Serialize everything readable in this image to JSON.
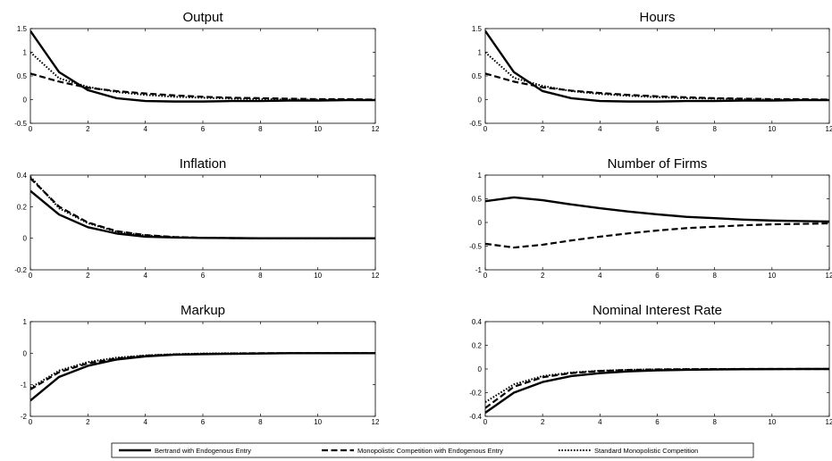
{
  "chart_data": [
    {
      "type": "line",
      "title": "Output",
      "xlim": [
        0,
        12
      ],
      "ylim": [
        -0.5,
        1.5
      ],
      "xticks": [
        "0",
        "2",
        "4",
        "6",
        "8",
        "10",
        "12"
      ],
      "yticks": [
        "-0.5",
        "0",
        "0.5",
        "1",
        "1.5"
      ],
      "x": [
        0,
        1,
        2,
        3,
        4,
        5,
        6,
        7,
        8,
        9,
        10,
        11,
        12
      ],
      "series": [
        {
          "style": "solid",
          "values": [
            1.45,
            0.58,
            0.2,
            0.03,
            -0.03,
            -0.04,
            -0.04,
            -0.03,
            -0.03,
            -0.02,
            -0.02,
            -0.01,
            -0.01
          ]
        },
        {
          "style": "dashed",
          "values": [
            0.55,
            0.38,
            0.25,
            0.18,
            0.13,
            0.09,
            0.06,
            0.04,
            0.03,
            0.02,
            0.01,
            0.01,
            0.0
          ]
        },
        {
          "style": "dotted",
          "values": [
            1.0,
            0.45,
            0.27,
            0.16,
            0.1,
            0.06,
            0.04,
            0.02,
            0.01,
            0.0,
            0.0,
            0.0,
            0.0
          ]
        }
      ]
    },
    {
      "type": "line",
      "title": "Hours",
      "xlim": [
        0,
        12
      ],
      "ylim": [
        -0.5,
        1.5
      ],
      "xticks": [
        "0",
        "2",
        "4",
        "6",
        "8",
        "10",
        "12"
      ],
      "yticks": [
        "-0.5",
        "0",
        "0.5",
        "1",
        "1.5"
      ],
      "x": [
        0,
        1,
        2,
        3,
        4,
        5,
        6,
        7,
        8,
        9,
        10,
        11,
        12
      ],
      "series": [
        {
          "style": "solid",
          "values": [
            1.45,
            0.58,
            0.18,
            0.03,
            -0.03,
            -0.04,
            -0.04,
            -0.03,
            -0.03,
            -0.02,
            -0.02,
            -0.01,
            -0.01
          ]
        },
        {
          "style": "dashed",
          "values": [
            0.55,
            0.38,
            0.26,
            0.19,
            0.14,
            0.1,
            0.07,
            0.05,
            0.03,
            0.02,
            0.01,
            0.01,
            0.0
          ]
        },
        {
          "style": "dotted",
          "values": [
            1.0,
            0.46,
            0.29,
            0.18,
            0.12,
            0.08,
            0.05,
            0.03,
            0.02,
            0.01,
            0.0,
            0.0,
            0.0
          ]
        }
      ]
    },
    {
      "type": "line",
      "title": "Inflation",
      "xlim": [
        0,
        12
      ],
      "ylim": [
        -0.2,
        0.4
      ],
      "xticks": [
        "0",
        "2",
        "4",
        "6",
        "8",
        "10",
        "12"
      ],
      "yticks": [
        "-0.2",
        "0",
        "0.2",
        "0.4"
      ],
      "x": [
        0,
        1,
        2,
        3,
        4,
        5,
        6,
        7,
        8,
        9,
        10,
        11,
        12
      ],
      "series": [
        {
          "style": "solid",
          "values": [
            0.3,
            0.15,
            0.07,
            0.03,
            0.01,
            0.005,
            0.002,
            0.001,
            0.0,
            0.0,
            0.0,
            0.0,
            0.0
          ]
        },
        {
          "style": "dashed",
          "values": [
            0.38,
            0.2,
            0.1,
            0.045,
            0.02,
            0.008,
            0.003,
            0.001,
            0.0,
            0.0,
            0.0,
            0.0,
            0.0
          ]
        },
        {
          "style": "dotted",
          "values": [
            0.39,
            0.19,
            0.095,
            0.042,
            0.018,
            0.007,
            0.003,
            0.001,
            0.0,
            0.0,
            0.0,
            0.0,
            0.0
          ]
        }
      ]
    },
    {
      "type": "line",
      "title": "Number of Firms",
      "xlim": [
        0,
        12
      ],
      "ylim": [
        -1,
        1
      ],
      "xticks": [
        "0",
        "2",
        "4",
        "6",
        "8",
        "10",
        "12"
      ],
      "yticks": [
        "-1",
        "-0.5",
        "0",
        "0.5",
        "1"
      ],
      "x": [
        0,
        1,
        2,
        3,
        4,
        5,
        6,
        7,
        8,
        9,
        10,
        11,
        12
      ],
      "series": [
        {
          "style": "solid",
          "values": [
            0.45,
            0.53,
            0.47,
            0.38,
            0.3,
            0.23,
            0.17,
            0.12,
            0.09,
            0.06,
            0.04,
            0.03,
            0.02
          ]
        },
        {
          "style": "dashed",
          "values": [
            -0.45,
            -0.53,
            -0.47,
            -0.38,
            -0.3,
            -0.23,
            -0.17,
            -0.12,
            -0.09,
            -0.06,
            -0.04,
            -0.03,
            -0.02
          ]
        }
      ]
    },
    {
      "type": "line",
      "title": "Markup",
      "xlim": [
        0,
        12
      ],
      "ylim": [
        -2,
        1
      ],
      "xticks": [
        "0",
        "2",
        "4",
        "6",
        "8",
        "10",
        "12"
      ],
      "yticks": [
        "-2",
        "-1",
        "0",
        "1"
      ],
      "x": [
        0,
        1,
        2,
        3,
        4,
        5,
        6,
        7,
        8,
        9,
        10,
        11,
        12
      ],
      "series": [
        {
          "style": "solid",
          "values": [
            -1.5,
            -0.75,
            -0.4,
            -0.2,
            -0.1,
            -0.05,
            -0.03,
            -0.02,
            -0.01,
            0.0,
            0.0,
            0.0,
            0.0
          ]
        },
        {
          "style": "dashed",
          "values": [
            -1.15,
            -0.6,
            -0.32,
            -0.17,
            -0.08,
            -0.04,
            -0.02,
            -0.01,
            0.0,
            0.0,
            0.0,
            0.0,
            0.0
          ]
        },
        {
          "style": "dotted",
          "values": [
            -1.1,
            -0.55,
            -0.28,
            -0.14,
            -0.07,
            -0.03,
            -0.01,
            0.0,
            0.0,
            0.0,
            0.0,
            0.0,
            0.0
          ]
        }
      ]
    },
    {
      "type": "line",
      "title": "Nominal Interest Rate",
      "xlim": [
        0,
        12
      ],
      "ylim": [
        -0.4,
        0.4
      ],
      "xticks": [
        "0",
        "2",
        "4",
        "6",
        "8",
        "10",
        "12"
      ],
      "yticks": [
        "-0.4",
        "-0.2",
        "0",
        "0.2",
        "0.4"
      ],
      "x": [
        0,
        1,
        2,
        3,
        4,
        5,
        6,
        7,
        8,
        9,
        10,
        11,
        12
      ],
      "series": [
        {
          "style": "solid",
          "values": [
            -0.37,
            -0.2,
            -0.11,
            -0.06,
            -0.035,
            -0.02,
            -0.012,
            -0.007,
            -0.004,
            -0.002,
            -0.001,
            0.0,
            0.0
          ]
        },
        {
          "style": "dashed",
          "values": [
            -0.33,
            -0.15,
            -0.07,
            -0.035,
            -0.017,
            -0.008,
            -0.004,
            -0.002,
            -0.001,
            0.0,
            0.0,
            0.0,
            0.0
          ]
        },
        {
          "style": "dotted",
          "values": [
            -0.28,
            -0.13,
            -0.06,
            -0.03,
            -0.015,
            -0.007,
            -0.003,
            -0.001,
            0.0,
            0.0,
            0.0,
            0.0,
            0.0
          ]
        }
      ]
    }
  ],
  "legend": {
    "placement": "bottom-center",
    "entries": [
      {
        "label": "Bertrand with Endogenous Entry",
        "style": "solid"
      },
      {
        "label": "Monopolistic Competition with Endogenous Entry",
        "style": "dashed"
      },
      {
        "label": "Standard Monopolistic Competition",
        "style": "dotted"
      }
    ]
  },
  "colors": {
    "line": "#000000",
    "background": "#ffffff",
    "axes": "#000000"
  }
}
